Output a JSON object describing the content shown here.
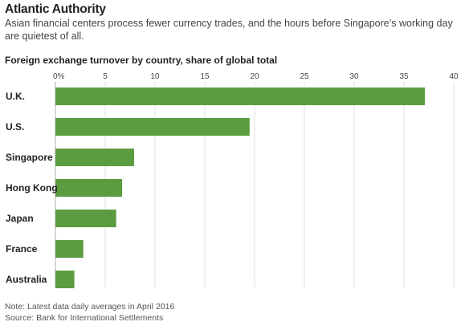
{
  "header": {
    "title": "Atlantic Authority",
    "subtitle": "Asian financial centers process fewer currency trades, and the hours before Singapore’s working day are quietest of all."
  },
  "chart_data": {
    "type": "bar",
    "orientation": "horizontal",
    "title": "Foreign exchange turnover by country, share of global total",
    "categories": [
      "U.K.",
      "U.S.",
      "Singapore",
      "Hong Kong",
      "Japan",
      "France",
      "Australia"
    ],
    "values": [
      37.1,
      19.5,
      7.9,
      6.7,
      6.1,
      2.8,
      1.9
    ],
    "xlim": [
      0,
      40
    ],
    "ticks": [
      "0%",
      "5",
      "10",
      "15",
      "20",
      "25",
      "30",
      "35",
      "40"
    ],
    "tick_values": [
      0,
      5,
      10,
      15,
      20,
      25,
      30,
      35,
      40
    ],
    "grid": true,
    "bar_color": "#5a9c3f",
    "grid_color": "#d9d9d9"
  },
  "footer": {
    "note": "Note: Latest data daily averages in April 2016",
    "source": "Source: Bank for International Settlements"
  }
}
